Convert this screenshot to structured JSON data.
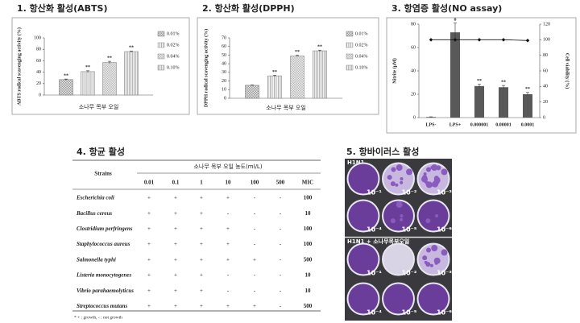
{
  "chart_data": [
    {
      "type": "bar",
      "title": "1. 항산화 활성(ABTS)",
      "ylabel": "ABTS radical scavenging activity (%)",
      "xlabel": "소나무 목부 오일",
      "ylim": [
        0,
        100
      ],
      "yticks": [
        0,
        20,
        40,
        60,
        80,
        100
      ],
      "series": [
        {
          "name": "0.01%",
          "color": "#7f7f7f",
          "values": [
            27
          ],
          "errors": [
            1
          ],
          "label": "**"
        },
        {
          "name": "0.02%",
          "color": "#8c8c8c",
          "values": [
            41
          ],
          "errors": [
            1.5
          ],
          "label": "**"
        },
        {
          "name": "0.04%",
          "color": "#8c8c8c",
          "values": [
            57
          ],
          "errors": [
            2
          ],
          "label": "**"
        },
        {
          "name": "0.10%",
          "color": "#8c8c8c",
          "values": [
            76
          ],
          "errors": [
            1
          ],
          "label": "**"
        }
      ]
    },
    {
      "type": "bar",
      "title": "2. 항산화 활성(DPPH)",
      "ylabel": "DPPH radical scavenging activity (%)",
      "xlabel": "소나무 목부 오일",
      "ylim": [
        0,
        70
      ],
      "yticks": [
        0,
        10,
        20,
        30,
        40,
        50,
        60,
        70
      ],
      "series": [
        {
          "name": "0.01%",
          "color": "#7f7f7f",
          "values": [
            15
          ],
          "errors": [
            0.5
          ],
          "label": null
        },
        {
          "name": "0.02%",
          "color": "#8c8c8c",
          "values": [
            26
          ],
          "errors": [
            0.7
          ],
          "label": "**"
        },
        {
          "name": "0.04%",
          "color": "#8c8c8c",
          "values": [
            49
          ],
          "errors": [
            0.8
          ],
          "label": "**"
        },
        {
          "name": "0.10%",
          "color": "#8c8c8c",
          "values": [
            55
          ],
          "errors": [
            0.8
          ],
          "label": "**"
        }
      ]
    },
    {
      "type": "combo",
      "title": "3. 항염증 활성(NO assay)",
      "ylabel": "Nitrite (μM)",
      "y2label": "Cell viability (%)",
      "categories": [
        "LPS-",
        "LPS+",
        "0.000001",
        "0.00001",
        "0.0001"
      ],
      "ylim": [
        0,
        80
      ],
      "yticks": [
        0,
        20,
        40,
        60,
        80
      ],
      "y2lim": [
        0,
        120
      ],
      "y2ticks": [
        0,
        20,
        40,
        60,
        80,
        100,
        120
      ],
      "series": [
        {
          "color": "#595959",
          "values": [
            0.5,
            73,
            27,
            26,
            20
          ],
          "errors": [
            0.2,
            8,
            1.5,
            1.5,
            1.5
          ],
          "labels": [
            null,
            "#",
            "**",
            "**",
            "**"
          ]
        },
        {
          "color": "#111111",
          "axis": "y2",
          "values": [
            100,
            100,
            100,
            100,
            99
          ]
        }
      ]
    }
  ],
  "table": {
    "title": "4. 항균 활성",
    "strains_header": "Strains",
    "group_header": "소나무 목부 오일 농도(ml/L)",
    "columns": [
      "0.01",
      "0.1",
      "1",
      "10",
      "100",
      "500",
      "MIC"
    ],
    "rows": [
      {
        "strain": "Escherichia coli",
        "cells": [
          "+",
          "+",
          "+",
          "+",
          "-",
          "-",
          100
        ]
      },
      {
        "strain": "Bacillus cereus",
        "cells": [
          "+",
          "+",
          "+",
          "-",
          "-",
          "-",
          10
        ]
      },
      {
        "strain": "Clostridium perfringens",
        "cells": [
          "+",
          "+",
          "+",
          "+",
          "-",
          "-",
          100
        ]
      },
      {
        "strain": "Staphylococcus aureus",
        "cells": [
          "+",
          "+",
          "+",
          "+",
          "-",
          "-",
          100
        ]
      },
      {
        "strain": "Salmonella typhi",
        "cells": [
          "+",
          "+",
          "+",
          "+",
          "+",
          "-",
          500
        ]
      },
      {
        "strain": "Listeria monocytogenes",
        "cells": [
          "+",
          "+",
          "+",
          "-",
          "-",
          "-",
          10
        ]
      },
      {
        "strain": "Vibrio parahaemolyticus",
        "cells": [
          "+",
          "+",
          "+",
          "-",
          "-",
          "-",
          10
        ]
      },
      {
        "strain": "Streptococcus mutans",
        "cells": [
          "+",
          "+",
          "+",
          "+",
          "+",
          "-",
          500
        ]
      }
    ],
    "footnote": "* + : growth, - : not growth"
  },
  "antiviral": {
    "title": "5. 항바이러스 활성",
    "groups": [
      {
        "label": "H1N1",
        "dilutions": [
          "10⁻¹",
          "10⁻²",
          "10⁻³",
          "10⁻⁴",
          "10⁻⁵",
          "10⁻⁶"
        ]
      },
      {
        "label": "H1N1 + 소나무목부오일",
        "dilutions": [
          "10⁻¹",
          "10⁻²",
          "10⁻³",
          "10⁻⁴",
          "10⁻⁵",
          "10⁻⁶"
        ]
      }
    ]
  }
}
